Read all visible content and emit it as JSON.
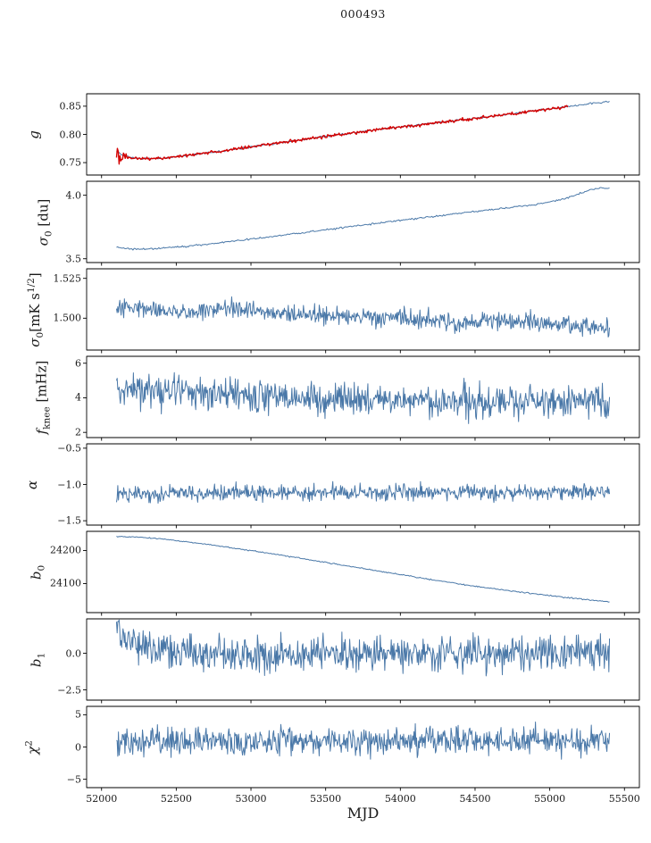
{
  "title": "000493",
  "xlabel": "MJD",
  "chart_data": {
    "type": "line",
    "x": {
      "label": "MJD",
      "lim": [
        51900,
        55600
      ],
      "ticks": [
        {
          "v": 52000,
          "label": "52000"
        },
        {
          "v": 52500,
          "label": "52500"
        },
        {
          "v": 53000,
          "label": "53000"
        },
        {
          "v": 53500,
          "label": "53500"
        },
        {
          "v": 54000,
          "label": "54000"
        },
        {
          "v": 54500,
          "label": "54500"
        },
        {
          "v": 55000,
          "label": "55000"
        },
        {
          "v": 55500,
          "label": "55500"
        }
      ]
    },
    "panels": [
      {
        "name": "gain",
        "ylabel_parts": [
          {
            "t": "g",
            "style": "i"
          }
        ],
        "ylim": [
          0.728,
          0.872
        ],
        "yticks": [
          {
            "v": 0.75,
            "label": "0.75"
          },
          {
            "v": 0.8,
            "label": "0.80"
          },
          {
            "v": 0.85,
            "label": "0.85"
          }
        ],
        "series": [
          {
            "name": "gain-smooth",
            "color": "#4a78a8",
            "width": 1,
            "x0": 52100,
            "x1": 55400,
            "n": 420,
            "seed": 11,
            "noise": 0.0008,
            "trend": [
              [
                52100,
                0.7705
              ],
              [
                52150,
                0.7618
              ],
              [
                52250,
                0.7572
              ],
              [
                52380,
                0.7572
              ],
              [
                52550,
                0.762
              ],
              [
                52800,
                0.7705
              ],
              [
                53050,
                0.78
              ],
              [
                53300,
                0.7893
              ],
              [
                53550,
                0.7983
              ],
              [
                53800,
                0.8068
              ],
              [
                54050,
                0.8148
              ],
              [
                54300,
                0.8225
              ],
              [
                54550,
                0.83
              ],
              [
                54800,
                0.8385
              ],
              [
                55000,
                0.845
              ],
              [
                55150,
                0.8505
              ],
              [
                55300,
                0.8555
              ],
              [
                55400,
                0.858
              ]
            ]
          },
          {
            "name": "gain-measured",
            "color": "#d40000",
            "width": 1.4,
            "x0": 52100,
            "x1": 55120,
            "n": 520,
            "seed": 12,
            "noise": 0.0013,
            "err_until": 52200,
            "err_amp": 0.013,
            "trend": [
              [
                52100,
                0.7705
              ],
              [
                52150,
                0.7618
              ],
              [
                52250,
                0.7572
              ],
              [
                52380,
                0.7572
              ],
              [
                52550,
                0.762
              ],
              [
                52800,
                0.7705
              ],
              [
                53050,
                0.78
              ],
              [
                53300,
                0.7893
              ],
              [
                53550,
                0.7983
              ],
              [
                53800,
                0.8068
              ],
              [
                54050,
                0.8148
              ],
              [
                54300,
                0.8225
              ],
              [
                54550,
                0.83
              ],
              [
                54800,
                0.8385
              ],
              [
                55000,
                0.845
              ],
              [
                55150,
                0.8505
              ]
            ]
          }
        ]
      },
      {
        "name": "sigma0-du",
        "ylabel_parts": [
          {
            "t": "σ",
            "style": "i"
          },
          {
            "t": "0",
            "style": "sub"
          },
          {
            "t": " [du]",
            "style": ""
          }
        ],
        "ylim": [
          3.47,
          4.11
        ],
        "yticks": [
          {
            "v": 3.5,
            "label": "3.5"
          },
          {
            "v": 4.0,
            "label": "4.0"
          }
        ],
        "series": [
          {
            "name": "sigma0-du-curve",
            "color": "#4a78a8",
            "width": 1,
            "x0": 52100,
            "x1": 55400,
            "n": 420,
            "seed": 21,
            "noise": 0.0035,
            "trend": [
              [
                52100,
                3.592
              ],
              [
                52170,
                3.579
              ],
              [
                52300,
                3.576
              ],
              [
                52450,
                3.586
              ],
              [
                52650,
                3.608
              ],
              [
                52900,
                3.641
              ],
              [
                53150,
                3.676
              ],
              [
                53400,
                3.713
              ],
              [
                53650,
                3.75
              ],
              [
                53900,
                3.787
              ],
              [
                54150,
                3.823
              ],
              [
                54400,
                3.858
              ],
              [
                54650,
                3.892
              ],
              [
                54900,
                3.926
              ],
              [
                55100,
                3.972
              ],
              [
                55250,
                4.035
              ],
              [
                55350,
                4.058
              ],
              [
                55400,
                4.055
              ]
            ]
          }
        ]
      },
      {
        "name": "sigma0-mk",
        "ylabel_parts": [
          {
            "t": "σ",
            "style": "i"
          },
          {
            "t": "0",
            "style": "sub"
          },
          {
            "t": "[mK s",
            "style": ""
          },
          {
            "t": "1/2",
            "style": "sup"
          },
          {
            "t": "]",
            "style": ""
          }
        ],
        "ylim": [
          1.48,
          1.531
        ],
        "yticks": [
          {
            "v": 1.5,
            "label": "1.500"
          },
          {
            "v": 1.525,
            "label": "1.525"
          }
        ],
        "series": [
          {
            "name": "sigma0-mk-curve",
            "color": "#4a78a8",
            "width": 1,
            "x0": 52100,
            "x1": 55400,
            "n": 750,
            "seed": 31,
            "noise": 0.0028,
            "trend": [
              [
                52100,
                1.5045
              ],
              [
                52250,
                1.5078
              ],
              [
                52400,
                1.5052
              ],
              [
                52600,
                1.5035
              ],
              [
                52800,
                1.5058
              ],
              [
                53050,
                1.5042
              ],
              [
                53300,
                1.5025
              ],
              [
                53600,
                1.5008
              ],
              [
                53900,
                1.5
              ],
              [
                54200,
                1.499
              ],
              [
                54500,
                1.4972
              ],
              [
                54800,
                1.4988
              ],
              [
                55050,
                1.4965
              ],
              [
                55250,
                1.4952
              ],
              [
                55400,
                1.4938
              ]
            ]
          }
        ]
      },
      {
        "name": "fknee",
        "ylabel_parts": [
          {
            "t": "f",
            "style": "i"
          },
          {
            "t": "knee",
            "style": "sub"
          },
          {
            "t": " [mHz]",
            "style": ""
          }
        ],
        "ylim": [
          1.7,
          6.4
        ],
        "yticks": [
          {
            "v": 2,
            "label": "2"
          },
          {
            "v": 4,
            "label": "4"
          },
          {
            "v": 6,
            "label": "6"
          }
        ],
        "series": [
          {
            "name": "fknee-curve",
            "color": "#4a78a8",
            "width": 1,
            "x0": 52100,
            "x1": 55400,
            "n": 760,
            "seed": 41,
            "noise": 0.48,
            "trend": [
              [
                52100,
                4.55
              ],
              [
                52350,
                4.42
              ],
              [
                52650,
                4.28
              ],
              [
                53000,
                4.1
              ],
              [
                53350,
                3.97
              ],
              [
                53700,
                3.9
              ],
              [
                54050,
                3.86
              ],
              [
                54400,
                3.82
              ],
              [
                54750,
                3.82
              ],
              [
                55050,
                3.86
              ],
              [
                55250,
                3.8
              ],
              [
                55400,
                3.74
              ]
            ]
          }
        ]
      },
      {
        "name": "alpha",
        "ylabel_parts": [
          {
            "t": "α",
            "style": "i"
          }
        ],
        "ylim": [
          -1.56,
          -0.44
        ],
        "yticks": [
          {
            "v": -1.5,
            "label": "−1.5"
          },
          {
            "v": -1.0,
            "label": "−1.0"
          },
          {
            "v": -0.5,
            "label": "−0.5"
          }
        ],
        "series": [
          {
            "name": "alpha-curve",
            "color": "#4a78a8",
            "width": 1,
            "x0": 52100,
            "x1": 55400,
            "n": 760,
            "seed": 51,
            "noise": 0.054,
            "trend": [
              [
                52100,
                -1.125
              ],
              [
                53000,
                -1.117
              ],
              [
                54000,
                -1.112
              ],
              [
                55400,
                -1.102
              ]
            ]
          }
        ]
      },
      {
        "name": "b0",
        "ylabel_parts": [
          {
            "t": "b",
            "style": "i"
          },
          {
            "t": "0",
            "style": "sub"
          }
        ],
        "ylim": [
          24012,
          24258
        ],
        "yticks": [
          {
            "v": 24100,
            "label": "24100"
          },
          {
            "v": 24200,
            "label": "24200"
          }
        ],
        "series": [
          {
            "name": "b0-curve",
            "color": "#4a78a8",
            "width": 1,
            "x0": 52100,
            "x1": 55400,
            "n": 420,
            "seed": 61,
            "noise": 0.9,
            "trend": [
              [
                52100,
                24242
              ],
              [
                52280,
                24240
              ],
              [
                52480,
                24231
              ],
              [
                52700,
                24219
              ],
              [
                52950,
                24203
              ],
              [
                53200,
                24186
              ],
              [
                53450,
                24168
              ],
              [
                53700,
                24149
              ],
              [
                53950,
                24131
              ],
              [
                54200,
                24112
              ],
              [
                54450,
                24095
              ],
              [
                54700,
                24080
              ],
              [
                54950,
                24066
              ],
              [
                55150,
                24056
              ],
              [
                55300,
                24049
              ],
              [
                55400,
                24045
              ]
            ]
          }
        ]
      },
      {
        "name": "b1",
        "ylabel_parts": [
          {
            "t": "b",
            "style": "i"
          },
          {
            "t": "1",
            "style": "sub"
          }
        ],
        "ylim": [
          -3.2,
          2.35
        ],
        "yticks": [
          {
            "v": -2.5,
            "label": "−2.5"
          },
          {
            "v": 0.0,
            "label": "0.0"
          }
        ],
        "series": [
          {
            "name": "b1-curve",
            "color": "#4a78a8",
            "width": 1,
            "x0": 52100,
            "x1": 55400,
            "n": 760,
            "seed": 71,
            "noise": 0.58,
            "trend": [
              [
                52100,
                1.95
              ],
              [
                52140,
                1.25
              ],
              [
                52210,
                0.6
              ],
              [
                52320,
                0.22
              ],
              [
                52480,
                0.06
              ],
              [
                52800,
                0.0
              ],
              [
                54000,
                -0.02
              ],
              [
                55400,
                0.02
              ]
            ]
          }
        ]
      },
      {
        "name": "chi2",
        "ylabel_parts": [
          {
            "t": "χ",
            "style": "i"
          },
          {
            "t": "2",
            "style": "sup"
          }
        ],
        "ylim": [
          -6.3,
          6.3
        ],
        "yticks": [
          {
            "v": -5,
            "label": "−5"
          },
          {
            "v": 0,
            "label": "0"
          },
          {
            "v": 5,
            "label": "5"
          }
        ],
        "series": [
          {
            "name": "chi2-curve",
            "color": "#4a78a8",
            "width": 1,
            "x0": 52100,
            "x1": 55400,
            "n": 760,
            "seed": 81,
            "noise": 1.05,
            "trend": [
              [
                52100,
                0.9
              ],
              [
                53000,
                0.85
              ],
              [
                54000,
                0.9
              ],
              [
                55400,
                0.85
              ]
            ]
          }
        ]
      }
    ]
  }
}
